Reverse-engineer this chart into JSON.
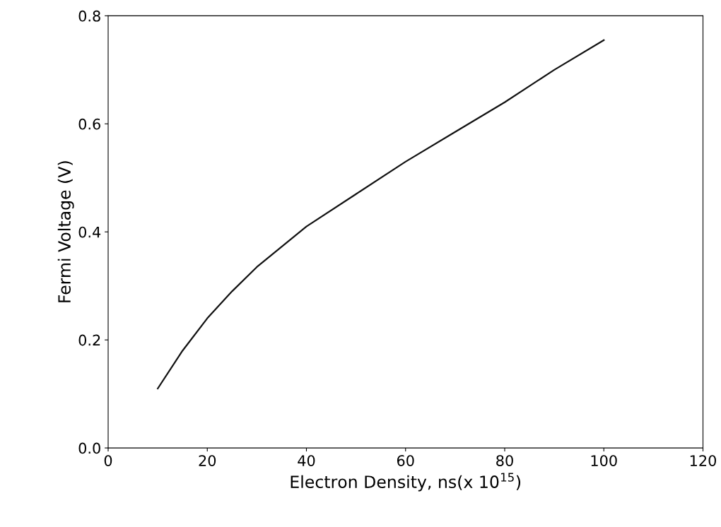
{
  "chart_data": {
    "type": "line",
    "xlabel": "Electron Density, ns(x 10$^{15}$)",
    "ylabel": "Fermi Voltage (V)",
    "x": [
      10,
      15,
      20,
      25,
      30,
      40,
      50,
      60,
      70,
      80,
      90,
      100
    ],
    "series": [
      {
        "color": "#111111",
        "values": [
          0.11,
          0.18,
          0.24,
          0.29,
          0.335,
          0.41,
          0.47,
          0.53,
          0.585,
          0.64,
          0.7,
          0.755
        ]
      }
    ],
    "xlim": [
      0,
      120
    ],
    "xticks": [
      0,
      20,
      40,
      60,
      80,
      100,
      120
    ],
    "ylim": [
      0,
      0.8
    ],
    "yticks": [
      {
        "value": 0,
        "label": "0.0"
      },
      0.2,
      0.4,
      0.6,
      0.8
    ],
    "grid": false,
    "legend": false,
    "marker": "none",
    "line_style": "solid"
  }
}
